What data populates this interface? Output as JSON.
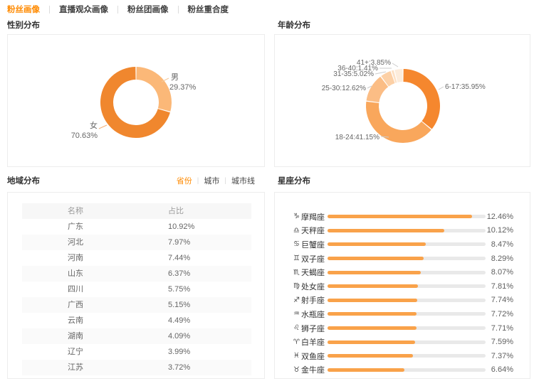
{
  "accent": "#ff8a00",
  "nav_tabs": [
    {
      "label": "粉丝画像",
      "active": true
    },
    {
      "label": "直播观众画像",
      "active": false
    },
    {
      "label": "粉丝团画像",
      "active": false
    },
    {
      "label": "粉丝重合度",
      "active": false
    }
  ],
  "gender": {
    "title": "性别分布",
    "segments": [
      {
        "label": "男",
        "value": 29.37,
        "color": "#fbb878"
      },
      {
        "label": "女",
        "value": 70.63,
        "color": "#f0872e"
      }
    ]
  },
  "age": {
    "title": "年龄分布",
    "segments": [
      {
        "label": "6-17",
        "value": 35.95,
        "color": "#f5872e"
      },
      {
        "label": "18-24",
        "value": 41.15,
        "color": "#f9a75c"
      },
      {
        "label": "25-30",
        "value": 12.62,
        "color": "#fbbd85"
      },
      {
        "label": "31-35",
        "value": 5.02,
        "color": "#fcd0a6"
      },
      {
        "label": "36-40",
        "value": 1.41,
        "color": "#fde0c4"
      },
      {
        "label": "41+",
        "value": 3.85,
        "color": "#fcecdc"
      }
    ]
  },
  "region": {
    "title": "地域分布",
    "tabs": [
      {
        "label": "省份",
        "active": true
      },
      {
        "label": "城市",
        "active": false
      },
      {
        "label": "城市线",
        "active": false
      }
    ],
    "headers": [
      "名称",
      "占比"
    ],
    "rows": [
      [
        "广东",
        "10.92%"
      ],
      [
        "河北",
        "7.97%"
      ],
      [
        "河南",
        "7.44%"
      ],
      [
        "山东",
        "6.37%"
      ],
      [
        "四川",
        "5.75%"
      ],
      [
        "广西",
        "5.15%"
      ],
      [
        "云南",
        "4.49%"
      ],
      [
        "湖南",
        "4.09%"
      ],
      [
        "辽宁",
        "3.99%"
      ],
      [
        "江苏",
        "3.72%"
      ]
    ]
  },
  "zodiac": {
    "title": "星座分布",
    "axis_max": 13.66,
    "bar_color": "#f9a24a",
    "bars": [
      {
        "icon": "♑",
        "icon_name": "capricorn-icon",
        "label": "摩羯座",
        "value": 12.46
      },
      {
        "icon": "♎",
        "icon_name": "libra-icon",
        "label": "天秤座",
        "value": 10.12
      },
      {
        "icon": "♋",
        "icon_name": "cancer-icon",
        "label": "巨蟹座",
        "value": 8.47
      },
      {
        "icon": "♊",
        "icon_name": "gemini-icon",
        "label": "双子座",
        "value": 8.29
      },
      {
        "icon": "♏",
        "icon_name": "scorpio-icon",
        "label": "天蝎座",
        "value": 8.07
      },
      {
        "icon": "♍",
        "icon_name": "virgo-icon",
        "label": "处女座",
        "value": 7.81
      },
      {
        "icon": "♐",
        "icon_name": "sagittarius-icon",
        "label": "射手座",
        "value": 7.74
      },
      {
        "icon": "♒",
        "icon_name": "aquarius-icon",
        "label": "水瓶座",
        "value": 7.72
      },
      {
        "icon": "♌",
        "icon_name": "leo-icon",
        "label": "狮子座",
        "value": 7.71
      },
      {
        "icon": "♈",
        "icon_name": "aries-icon",
        "label": "白羊座",
        "value": 7.59
      },
      {
        "icon": "♓",
        "icon_name": "pisces-icon",
        "label": "双鱼座",
        "value": 7.37
      },
      {
        "icon": "♉",
        "icon_name": "taurus-icon",
        "label": "金牛座",
        "value": 6.64
      }
    ]
  },
  "chart_data": [
    {
      "type": "pie",
      "title": "性别分布",
      "labels": [
        "男",
        "女"
      ],
      "values": [
        29.37,
        70.63
      ],
      "unit": "%",
      "style": "donut"
    },
    {
      "type": "pie",
      "title": "年龄分布",
      "labels": [
        "6-17",
        "18-24",
        "25-30",
        "31-35",
        "36-40",
        "41+"
      ],
      "values": [
        35.95,
        41.15,
        12.62,
        5.02,
        1.41,
        3.85
      ],
      "unit": "%",
      "style": "donut"
    },
    {
      "type": "bar",
      "title": "星座分布",
      "orientation": "horizontal",
      "categories": [
        "摩羯座",
        "天秤座",
        "巨蟹座",
        "双子座",
        "天蝎座",
        "处女座",
        "射手座",
        "水瓶座",
        "狮子座",
        "白羊座",
        "双鱼座",
        "金牛座"
      ],
      "values": [
        12.46,
        10.12,
        8.47,
        8.29,
        8.07,
        7.81,
        7.74,
        7.72,
        7.71,
        7.59,
        7.37,
        6.64
      ],
      "unit": "%",
      "xlim": [
        0,
        13.66
      ]
    },
    {
      "type": "table",
      "title": "地域分布",
      "columns": [
        "名称",
        "占比"
      ],
      "rows": [
        [
          "广东",
          "10.92%"
        ],
        [
          "河北",
          "7.97%"
        ],
        [
          "河南",
          "7.44%"
        ],
        [
          "山东",
          "6.37%"
        ],
        [
          "四川",
          "5.75%"
        ],
        [
          "广西",
          "5.15%"
        ],
        [
          "云南",
          "4.49%"
        ],
        [
          "湖南",
          "4.09%"
        ],
        [
          "辽宁",
          "3.99%"
        ],
        [
          "江苏",
          "3.72%"
        ]
      ]
    }
  ]
}
